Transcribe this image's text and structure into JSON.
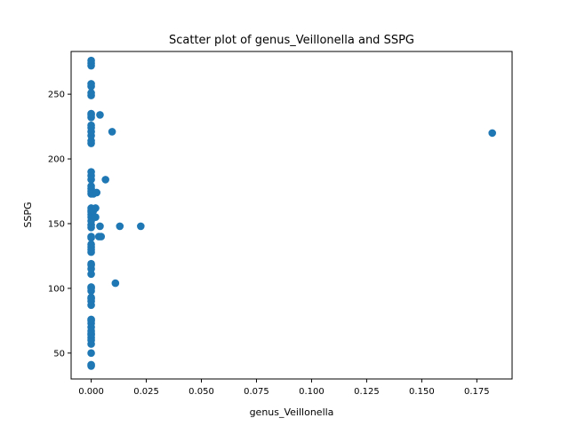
{
  "chart_data": {
    "type": "scatter",
    "title": "Scatter plot of genus_Veillonella and SSPG",
    "xlabel": "genus_Veillonella",
    "ylabel": "SSPG",
    "xlim": [
      -0.0091,
      0.191
    ],
    "ylim": [
      30,
      283
    ],
    "xticks": [
      0,
      0.025,
      0.05,
      0.075,
      0.1,
      0.125,
      0.15,
      0.175
    ],
    "xtick_labels": [
      "0.000",
      "0.025",
      "0.050",
      "0.075",
      "0.100",
      "0.125",
      "0.150",
      "0.175"
    ],
    "yticks": [
      50,
      100,
      150,
      200,
      250
    ],
    "ytick_labels": [
      "50",
      "100",
      "150",
      "200",
      "250"
    ],
    "grid": false,
    "marker_color": "#1f77b4",
    "points": [
      [
        0,
        40
      ],
      [
        0,
        41
      ],
      [
        0,
        50
      ],
      [
        0,
        57
      ],
      [
        0,
        60
      ],
      [
        0,
        62
      ],
      [
        0,
        64
      ],
      [
        0,
        65
      ],
      [
        0,
        67
      ],
      [
        0,
        70
      ],
      [
        0,
        73
      ],
      [
        0,
        75
      ],
      [
        0,
        76
      ],
      [
        0,
        87
      ],
      [
        0,
        90
      ],
      [
        0,
        92
      ],
      [
        0,
        93
      ],
      [
        0,
        98
      ],
      [
        0,
        100
      ],
      [
        0,
        101
      ],
      [
        0,
        111
      ],
      [
        0,
        115
      ],
      [
        0,
        118
      ],
      [
        0,
        119
      ],
      [
        0,
        128
      ],
      [
        0,
        130
      ],
      [
        0,
        132
      ],
      [
        0,
        134
      ],
      [
        0,
        139
      ],
      [
        0,
        140
      ],
      [
        0,
        147
      ],
      [
        0,
        149
      ],
      [
        0,
        152
      ],
      [
        0,
        155
      ],
      [
        0,
        157
      ],
      [
        0,
        159
      ],
      [
        0,
        160
      ],
      [
        0,
        162
      ],
      [
        0,
        173
      ],
      [
        0,
        175
      ],
      [
        0,
        177
      ],
      [
        0,
        179
      ],
      [
        0,
        184
      ],
      [
        0,
        187
      ],
      [
        0,
        190
      ],
      [
        0,
        212
      ],
      [
        0,
        214
      ],
      [
        0,
        218
      ],
      [
        0,
        221
      ],
      [
        0,
        224
      ],
      [
        0,
        226
      ],
      [
        0,
        232
      ],
      [
        0,
        234
      ],
      [
        0,
        235
      ],
      [
        0,
        249
      ],
      [
        0,
        251
      ],
      [
        0,
        256
      ],
      [
        0,
        258
      ],
      [
        0,
        272
      ],
      [
        0,
        274
      ],
      [
        0,
        276
      ],
      [
        0.001,
        160
      ],
      [
        0.001,
        173
      ],
      [
        0.002,
        155
      ],
      [
        0.002,
        162
      ],
      [
        0.0025,
        174
      ],
      [
        0.0035,
        140
      ],
      [
        0.004,
        148
      ],
      [
        0.0045,
        140
      ],
      [
        0.004,
        234
      ],
      [
        0.0065,
        184
      ],
      [
        0.0095,
        221
      ],
      [
        0.011,
        104
      ],
      [
        0.013,
        148
      ],
      [
        0.0225,
        148
      ],
      [
        0.182,
        220
      ]
    ]
  }
}
